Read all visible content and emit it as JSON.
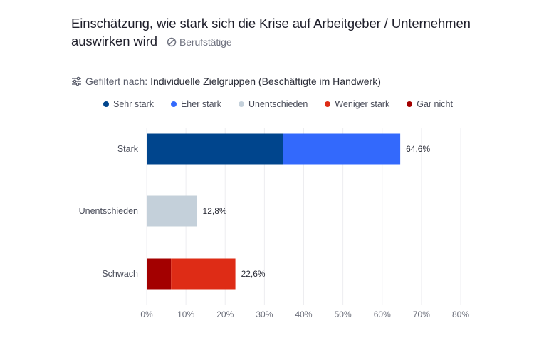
{
  "header": {
    "title": "Einschätzung, wie stark sich die Krise auf Arbeitgeber / Unternehmen auswirken wird",
    "tag_icon": "block-icon",
    "tag": "Berufstätige"
  },
  "filter": {
    "icon": "sliders-icon",
    "label": "Gefiltert nach:",
    "value": "Individuelle Zielgruppen (Beschäftigte im Handwerk)"
  },
  "legend": [
    {
      "label": "Sehr stark",
      "color": "#00458d"
    },
    {
      "label": "Eher stark",
      "color": "#3369fc"
    },
    {
      "label": "Unentschieden",
      "color": "#c4d0da"
    },
    {
      "label": "Weniger stark",
      "color": "#de2c16"
    },
    {
      "label": "Gar nicht",
      "color": "#a30000"
    }
  ],
  "chart_data": {
    "type": "bar",
    "orientation": "horizontal",
    "stacked": true,
    "title": "Einschätzung, wie stark sich die Krise auf Arbeitgeber / Unternehmen auswirken wird",
    "xlabel": "",
    "ylabel": "",
    "categories": [
      "Stark",
      "Unentschieden",
      "Schwach"
    ],
    "series": [
      {
        "name": "Sehr stark",
        "color": "#00458d",
        "values": [
          34.7,
          0,
          0
        ]
      },
      {
        "name": "Eher stark",
        "color": "#3369fc",
        "values": [
          29.9,
          0,
          0
        ]
      },
      {
        "name": "Unentschieden",
        "color": "#c4d0da",
        "values": [
          0,
          12.8,
          0
        ]
      },
      {
        "name": "Gar nicht",
        "color": "#a30000",
        "values": [
          0,
          0,
          6.2
        ]
      },
      {
        "name": "Weniger stark",
        "color": "#de2c16",
        "values": [
          0,
          0,
          16.4
        ]
      }
    ],
    "totals": [
      "64,6%",
      "12,8%",
      "22,6%"
    ],
    "total_values": [
      64.6,
      12.8,
      22.6
    ],
    "xlim": [
      0,
      80
    ],
    "xticks": [
      0,
      10,
      20,
      30,
      40,
      50,
      60,
      70,
      80
    ],
    "xtick_labels": [
      "0%",
      "10%",
      "20%",
      "30%",
      "40%",
      "50%",
      "60%",
      "70%",
      "80%"
    ],
    "grid": true,
    "legend_position": "top"
  }
}
